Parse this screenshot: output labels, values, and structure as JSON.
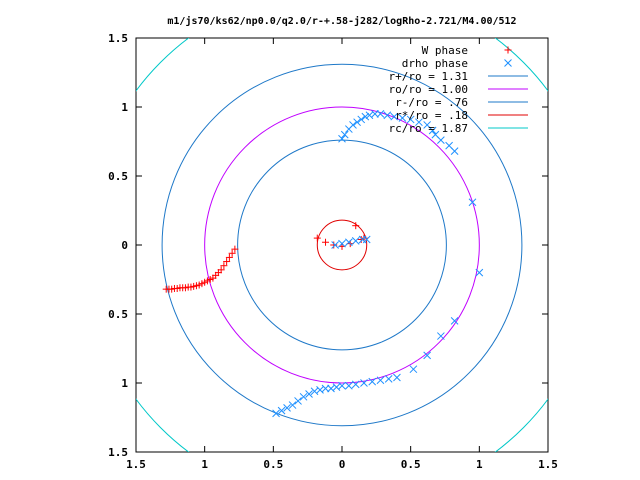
{
  "chart_data": {
    "type": "scatter",
    "title": "m1/js70/ks62/np0.0/q2.0/r-+.58-j282/logRho-2.721/M4.00/512",
    "xlim": [
      -1.5,
      1.5
    ],
    "ylim": [
      -1.5,
      1.5
    ],
    "x_ticks": [
      -1.5,
      -1,
      -0.5,
      0,
      0.5,
      1,
      1.5
    ],
    "x_tick_labels": [
      "1.5",
      "1",
      "0.5",
      "0",
      "0.5",
      "1",
      "1.5"
    ],
    "y_ticks": [
      1.5,
      1,
      0.5,
      0,
      -0.5,
      -1,
      -1.5
    ],
    "y_tick_labels": [
      "1.5",
      "1",
      "0.5",
      "0",
      "0.5",
      "1",
      "1.5"
    ],
    "legend_position": "top-right",
    "grid": false,
    "series": [
      {
        "name": "W phase",
        "kind": "points",
        "marker": "plus",
        "color": "#ff0000",
        "x": [
          -0.78,
          -0.8,
          -0.82,
          -0.84,
          -0.86,
          -0.88,
          -0.9,
          -0.92,
          -0.94,
          -0.96,
          -0.98,
          -1.0,
          -1.02,
          -1.04,
          -1.06,
          -1.08,
          -1.1,
          -1.12,
          -1.14,
          -1.16,
          -1.18,
          -1.2,
          -1.22,
          -1.24,
          -1.26,
          -1.28,
          -0.18,
          -0.12,
          -0.06,
          0.0,
          0.06,
          0.1,
          0.14,
          0.16
        ],
        "y": [
          -0.03,
          -0.06,
          -0.09,
          -0.12,
          -0.15,
          -0.18,
          -0.2,
          -0.22,
          -0.24,
          -0.25,
          -0.26,
          -0.27,
          -0.28,
          -0.29,
          -0.295,
          -0.3,
          -0.305,
          -0.305,
          -0.31,
          -0.31,
          -0.31,
          -0.315,
          -0.315,
          -0.32,
          -0.32,
          -0.32,
          0.05,
          0.02,
          0.0,
          -0.01,
          0.01,
          0.14,
          0.04,
          0.05
        ]
      },
      {
        "name": "drho phase",
        "kind": "points",
        "marker": "cross",
        "color": "#1e90ff",
        "x": [
          -0.05,
          0.0,
          0.05,
          0.1,
          0.15,
          0.18,
          0.0,
          0.02,
          0.05,
          0.08,
          0.11,
          0.14,
          0.17,
          0.2,
          0.24,
          0.28,
          0.33,
          0.38,
          0.44,
          0.5,
          0.56,
          0.62,
          0.66,
          0.68,
          0.72,
          0.78,
          0.82,
          0.95,
          1.0,
          -0.48,
          -0.44,
          -0.4,
          -0.36,
          -0.32,
          -0.28,
          -0.24,
          -0.2,
          -0.16,
          -0.12,
          -0.08,
          -0.04,
          0.0,
          0.05,
          0.1,
          0.16,
          0.22,
          0.28,
          0.34,
          0.4,
          0.52,
          0.62,
          0.72,
          0.82
        ],
        "y": [
          0.0,
          0.01,
          0.02,
          0.03,
          0.04,
          0.04,
          0.77,
          0.8,
          0.84,
          0.87,
          0.89,
          0.91,
          0.93,
          0.94,
          0.95,
          0.95,
          0.94,
          0.93,
          0.92,
          0.91,
          0.89,
          0.87,
          0.83,
          0.8,
          0.76,
          0.72,
          0.68,
          0.31,
          -0.2,
          -1.22,
          -1.2,
          -1.18,
          -1.16,
          -1.13,
          -1.1,
          -1.08,
          -1.06,
          -1.05,
          -1.04,
          -1.04,
          -1.03,
          -1.02,
          -1.02,
          -1.01,
          -1.0,
          -0.99,
          -0.98,
          -0.97,
          -0.96,
          -0.9,
          -0.8,
          -0.66,
          -0.55
        ]
      },
      {
        "name": "r+/ro = 1.31",
        "kind": "circle",
        "radius": 1.31,
        "color": "#1e78c8"
      },
      {
        "name": "ro/ro = 1.00",
        "kind": "circle",
        "radius": 1.0,
        "color": "#c000ff"
      },
      {
        "name": "r-/ro = .76",
        "kind": "circle",
        "radius": 0.76,
        "color": "#1e78c8"
      },
      {
        "name": "r*/ro = .18",
        "kind": "circle",
        "radius": 0.18,
        "color": "#e00000"
      },
      {
        "name": "rc/ro = 1.87",
        "kind": "circle",
        "radius": 1.87,
        "color": "#00c8c8"
      }
    ]
  }
}
